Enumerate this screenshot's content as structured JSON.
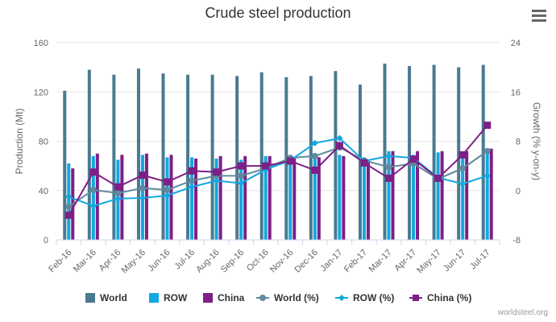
{
  "colors": {
    "world": "#4a7a91",
    "row": "#12a8e0",
    "china": "#7e1f86",
    "world_pct": "#5f8a9e",
    "row_pct": "#12a8e0",
    "china_pct": "#7e1f86"
  },
  "menu_icon": "hamburger-menu-icon",
  "credit": "worldsteel.org",
  "chart_data": {
    "type": "bar",
    "title": "Crude steel production",
    "categories": [
      "Feb-16",
      "Mar-16",
      "Apr-16",
      "May-16",
      "Jun-16",
      "Jul-16",
      "Aug-16",
      "Sep-16",
      "Oct-16",
      "Nov-16",
      "Dec-16",
      "Jan-17",
      "Feb-17",
      "Mar-17",
      "Apr-17",
      "May-17",
      "Jun-17",
      "Jul-17"
    ],
    "y_left": {
      "label": "Production (Mt)",
      "min": 0,
      "max": 160,
      "ticks": [
        0,
        40,
        80,
        120,
        160
      ]
    },
    "y_right": {
      "label": "Growth (% y-on-y)",
      "min": -8,
      "max": 24,
      "ticks": [
        -8,
        0,
        8,
        16,
        24
      ]
    },
    "grid": true,
    "legend_position": "bottom",
    "bar_series": [
      {
        "name": "World",
        "axis": "left",
        "values": [
          121,
          138,
          134,
          139,
          135,
          134,
          134,
          133,
          136,
          132,
          133,
          137,
          126,
          143,
          141,
          142,
          140,
          142
        ]
      },
      {
        "name": "ROW",
        "axis": "left",
        "values": [
          62,
          68,
          65,
          69,
          67,
          67,
          66,
          65,
          68,
          66,
          67,
          69,
          64,
          72,
          69,
          71,
          69,
          70
        ]
      },
      {
        "name": "China",
        "axis": "left",
        "values": [
          58,
          70,
          69,
          70,
          69,
          66,
          68,
          68,
          68,
          66,
          67,
          68,
          63,
          72,
          72,
          72,
          72,
          74
        ]
      }
    ],
    "line_series": [
      {
        "name": "World (%)",
        "axis": "right",
        "marker": "circle",
        "values": [
          -2.6,
          0.1,
          -0.4,
          0.4,
          0.1,
          1.6,
          2.4,
          2.4,
          3.6,
          5.3,
          5.6,
          7.0,
          4.9,
          3.8,
          4.4,
          1.9,
          3.6,
          6.4
        ]
      },
      {
        "name": "ROW (%)",
        "axis": "right",
        "marker": "diamond",
        "values": [
          -1.0,
          -2.5,
          -1.3,
          -1.2,
          -0.8,
          0.6,
          1.6,
          1.2,
          3.4,
          4.9,
          7.7,
          8.5,
          4.8,
          5.6,
          5.3,
          2.1,
          1.1,
          2.4
        ]
      },
      {
        "name": "China (%)",
        "axis": "right",
        "marker": "square",
        "values": [
          -4.0,
          3.0,
          0.6,
          2.5,
          1.4,
          3.2,
          3.0,
          4.0,
          4.0,
          4.8,
          3.3,
          7.3,
          4.5,
          2.0,
          5.1,
          2.0,
          5.8,
          10.6
        ]
      }
    ]
  }
}
